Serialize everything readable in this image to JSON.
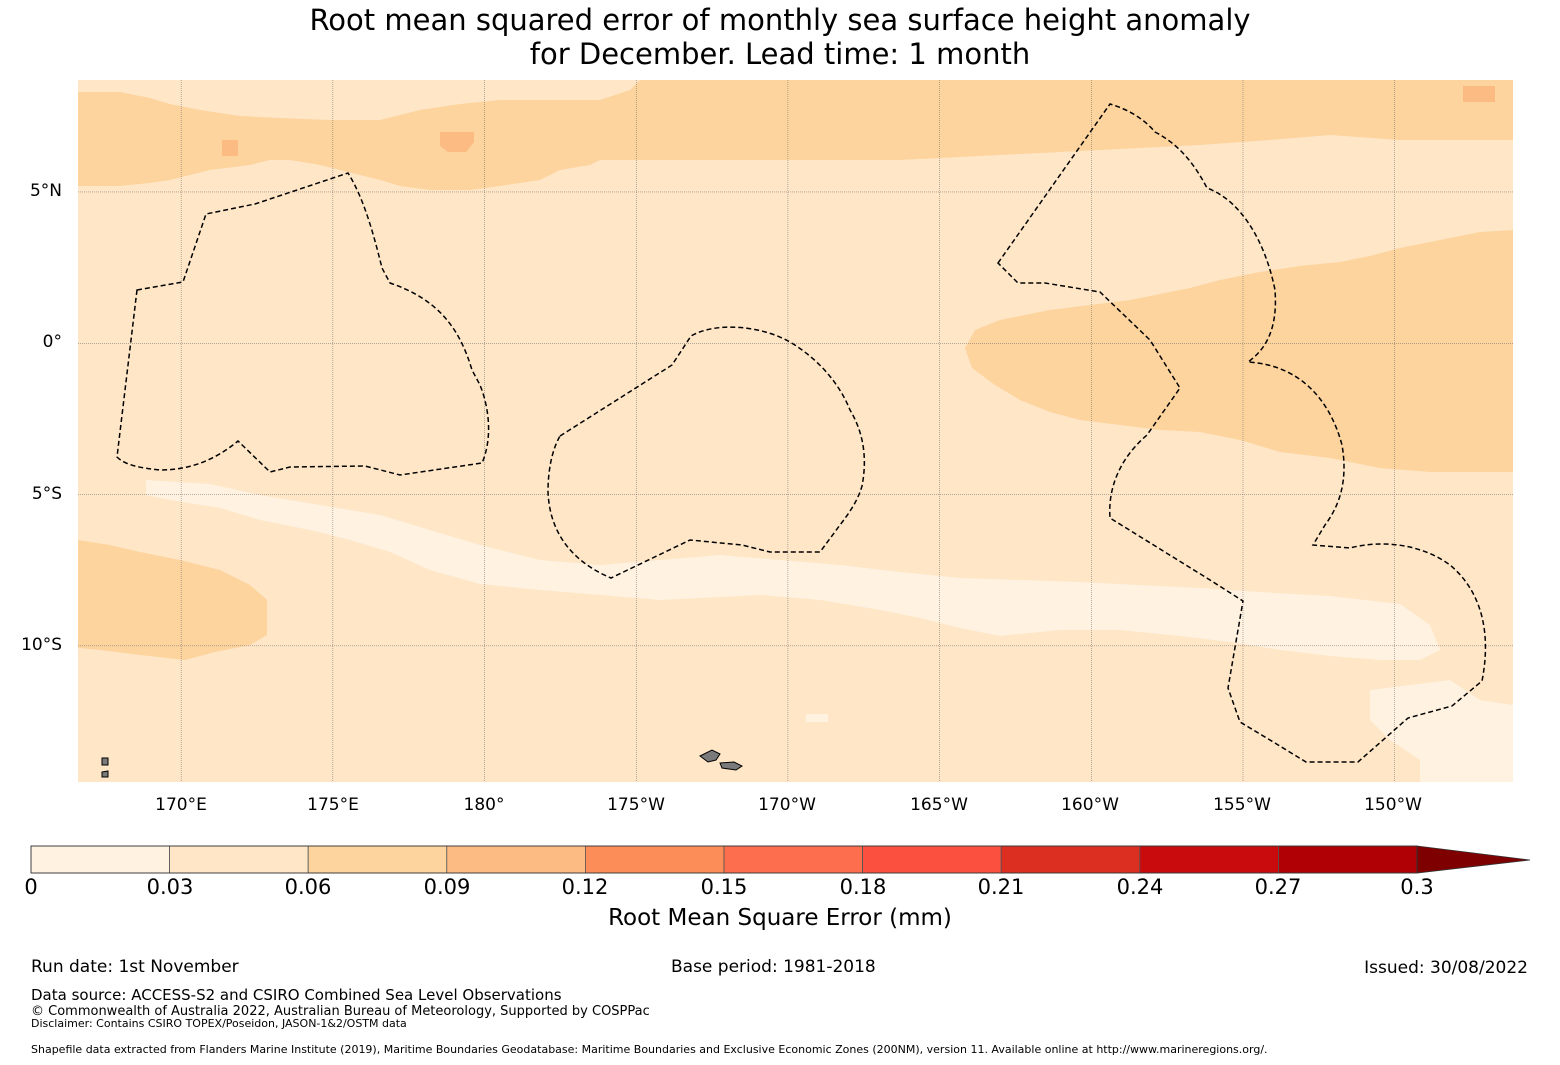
{
  "title": {
    "line1": "Root mean squared error of monthly sea surface height anomaly",
    "line2": "for December. Lead time: 1 month"
  },
  "map": {
    "lon_labels": [
      "170°E",
      "175°E",
      "180°",
      "175°W",
      "170°W",
      "165°W",
      "160°W",
      "155°W",
      "150°W"
    ],
    "lat_labels": [
      "5°N",
      "0°",
      "5°S",
      "10°S"
    ],
    "lon_values": [
      170,
      175,
      180,
      185,
      190,
      195,
      200,
      205,
      210
    ],
    "lat_values": [
      5,
      0,
      -5,
      -10
    ],
    "lon_range": [
      166.6,
      213.9
    ],
    "lat_range": [
      -14.5,
      8.7
    ],
    "boundary_style": "dashed EEZ outlines",
    "colors": {
      "c0": "#fff2e0",
      "c1": "#fee6c7",
      "c2": "#fdd49e",
      "c3": "#fdbb84",
      "land": "#7a7a7a"
    }
  },
  "colorbar": {
    "label": "Root Mean Square Error (mm)",
    "ticks": [
      "0",
      "0.03",
      "0.06",
      "0.09",
      "0.12",
      "0.15",
      "0.18",
      "0.21",
      "0.24",
      "0.27",
      "0.3"
    ],
    "colors": [
      "#fff2e0",
      "#fee6c7",
      "#fdd49e",
      "#fdbb84",
      "#fc8d59",
      "#fc6e4d",
      "#fb5040",
      "#dc2f21",
      "#c90b0e",
      "#b10005"
    ],
    "extend_color": "#7f0000"
  },
  "footer": {
    "run_date": "Run date: 1st November",
    "base_period": "Base period: 1981-2018",
    "issued": "Issued: 30/08/2022",
    "data_source": "Data source: ACCESS-S2 and CSIRO Combined Sea Level Observations",
    "copyright": "© Commonwealth of Australia 2022, Australian Bureau of Meteorology, Supported by COSPPac",
    "disclaimer": "Disclaimer: Contains CSIRO TOPEX/Poseidon, JASON-1&2/OSTM data",
    "shapefile": "Shapefile data extracted from Flanders Marine Institute (2019), Maritime Boundaries Geodatabase: Maritime Boundaries and Exclusive Economic Zones (200NM), version 11. Available online at http://www.marineregions.org/."
  }
}
